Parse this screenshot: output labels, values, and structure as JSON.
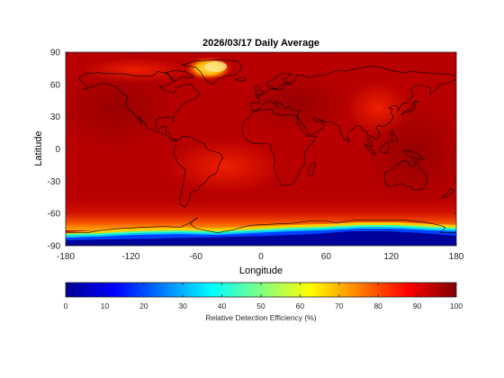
{
  "chart_data": {
    "type": "heatmap",
    "title": "2026/03/17 Daily Average",
    "xlabel": "Longitude",
    "ylabel": "Latitude",
    "xlim": [
      -180,
      180
    ],
    "ylim": [
      -90,
      90
    ],
    "x_ticks": [
      "-180",
      "-120",
      "-60",
      "0",
      "60",
      "120",
      "180"
    ],
    "y_ticks": [
      "90",
      "60",
      "30",
      "0",
      "-30",
      "-60",
      "-90"
    ],
    "x_tick_values": [
      -180,
      -120,
      -60,
      0,
      60,
      120,
      180
    ],
    "y_tick_values": [
      90,
      60,
      30,
      0,
      -30,
      -60,
      -90
    ],
    "colorbar": {
      "label": "Relative Detection Efficiency (%)",
      "range": [
        0,
        100
      ],
      "ticks": [
        "0",
        "10",
        "20",
        "30",
        "40",
        "50",
        "60",
        "70",
        "80",
        "90",
        "100"
      ],
      "tick_values": [
        0,
        10,
        20,
        30,
        40,
        50,
        60,
        70,
        80,
        90,
        100
      ],
      "colormap": "jet",
      "placement": "bottom"
    },
    "field_summary": {
      "typical_value": 93,
      "low_value_regions": [
        {
          "region": "Antarctica",
          "approx_value": 5
        },
        {
          "region": "Antarctic coastal belt",
          "approx_value": 35
        },
        {
          "region": "Central Greenland",
          "approx_value": 70
        },
        {
          "region": "Southern Ocean band",
          "approx_value": 80
        }
      ]
    },
    "colors": {
      "background_field": "#b50000",
      "land_outline": "#000000"
    }
  }
}
